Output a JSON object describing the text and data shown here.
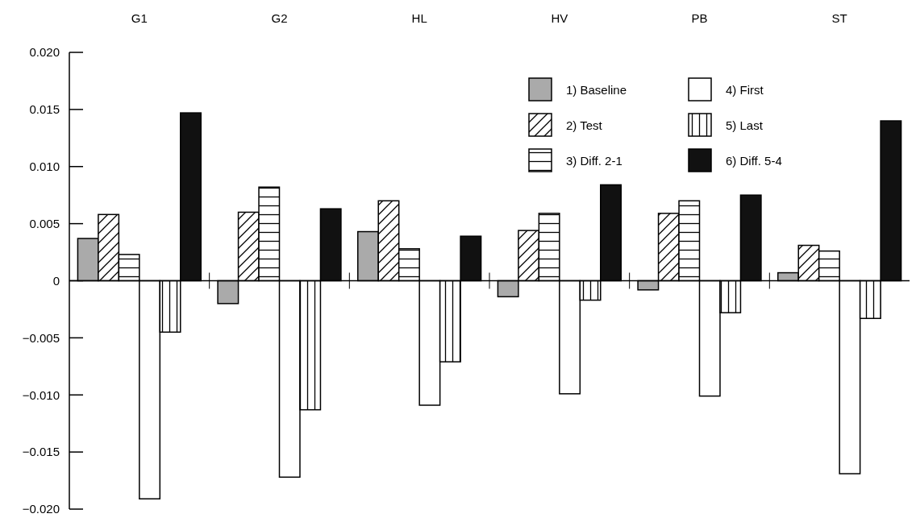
{
  "chart_data": {
    "type": "bar",
    "categories": [
      "G1",
      "G2",
      "HL",
      "HV",
      "PB",
      "ST"
    ],
    "series": [
      {
        "name": "1) Baseline",
        "color": "#aaaaaa",
        "values": [
          0.0037,
          -0.002,
          0.0043,
          -0.0014,
          -0.0008,
          0.0007
        ]
      },
      {
        "name": "2) Test",
        "color": "#000000",
        "values": [
          0.0058,
          0.006,
          0.007,
          0.0044,
          0.0059,
          0.0031
        ]
      },
      {
        "name": "3) Diff. 2-1",
        "color": "#000000",
        "values": [
          0.0023,
          0.0082,
          0.0028,
          0.0059,
          0.007,
          0.0026
        ]
      },
      {
        "name": "4) First",
        "color": "#ffffff",
        "values": [
          -0.0191,
          -0.0172,
          -0.0109,
          -0.0099,
          -0.0101,
          -0.0169
        ]
      },
      {
        "name": "5) Last",
        "color": "#000000",
        "values": [
          -0.0045,
          -0.0113,
          -0.0071,
          -0.0017,
          -0.0028,
          -0.0033
        ]
      },
      {
        "name": "6) Diff. 5-4",
        "color": "#111111",
        "values": [
          0.0147,
          0.0063,
          0.0039,
          0.0084,
          0.0075,
          0.014
        ]
      }
    ],
    "ylim": [
      -0.02,
      0.02
    ],
    "yticks": [
      {
        "value": 0.02,
        "label": "0.020"
      },
      {
        "value": 0.015,
        "label": "0.015"
      },
      {
        "value": 0.01,
        "label": "0.010"
      },
      {
        "value": 0.005,
        "label": "0.005"
      },
      {
        "value": 0,
        "label": "0"
      },
      {
        "value": -0.005,
        "label": "−0.005"
      },
      {
        "value": -0.01,
        "label": "−0.010"
      },
      {
        "value": -0.015,
        "label": "−0.015"
      },
      {
        "value": -0.02,
        "label": "−0.020"
      }
    ],
    "legend": "top right"
  }
}
